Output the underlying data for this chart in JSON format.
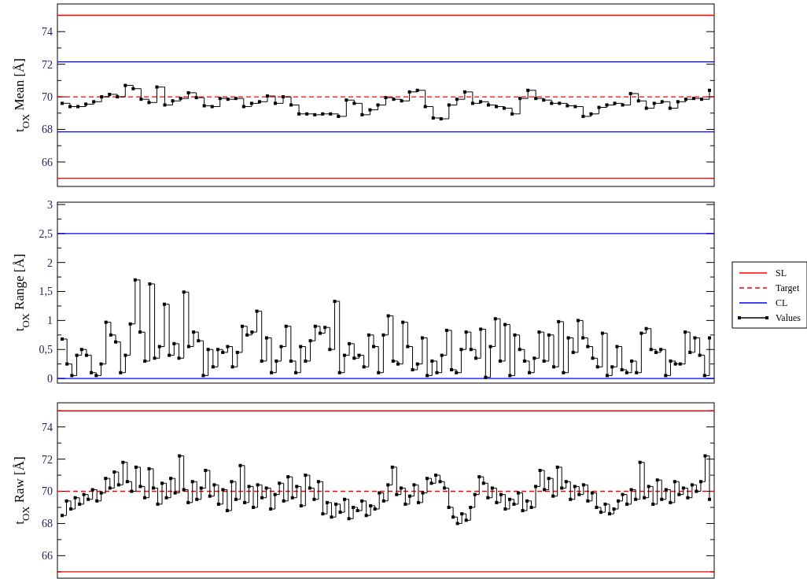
{
  "chart_data": [
    {
      "type": "step",
      "ylabel": "t$_{OX}$ Mean [Å]",
      "ylim": [
        64.5,
        75.7
      ],
      "yticks": [
        {
          "value": 65,
          "label": null
        },
        66,
        {
          "value": 67,
          "label": null
        },
        68,
        {
          "value": 69,
          "label": null
        },
        70,
        {
          "value": 71,
          "label": null
        },
        72,
        {
          "value": 73,
          "label": null
        },
        74,
        {
          "value": 75,
          "label": null
        }
      ],
      "tick_labels": "y",
      "grid": false,
      "legend": "right",
      "marker": "square",
      "categories": [
        null,
        null,
        null,
        null,
        null,
        null,
        null,
        null,
        null,
        null,
        null,
        null,
        null,
        null,
        null,
        null,
        null,
        null,
        null,
        null,
        null,
        null,
        null,
        null,
        null,
        null,
        null,
        null,
        null,
        null,
        null,
        null,
        null,
        null,
        null,
        null,
        null,
        null,
        null,
        null,
        null,
        null,
        null,
        null,
        null,
        null,
        null,
        null,
        null,
        null,
        null,
        null,
        null,
        null,
        null,
        null,
        null,
        null,
        null,
        null,
        null,
        null,
        null,
        null,
        null,
        null,
        null,
        null,
        null,
        null,
        null,
        null,
        null,
        null,
        null,
        null,
        null,
        null,
        null,
        null,
        null,
        null,
        null
      ],
      "series": [
        {
          "name": "Values",
          "color": "#000000",
          "values": [
            69.6,
            69.4,
            69.4,
            69.55,
            69.7,
            70.0,
            70.15,
            70.0,
            70.7,
            70.5,
            69.85,
            69.65,
            70.6,
            69.5,
            69.75,
            69.9,
            70.25,
            69.95,
            69.45,
            69.4,
            69.9,
            69.85,
            69.9,
            69.4,
            69.6,
            69.7,
            70.05,
            69.6,
            70.0,
            69.5,
            68.95,
            68.95,
            68.9,
            68.95,
            68.95,
            68.8,
            69.8,
            69.6,
            68.9,
            69.2,
            69.5,
            69.95,
            69.85,
            69.75,
            70.3,
            70.4,
            69.4,
            68.7,
            68.65,
            69.5,
            69.85,
            70.3,
            69.6,
            69.7,
            69.5,
            69.4,
            69.3,
            68.95,
            69.9,
            70.4,
            69.9,
            69.8,
            69.6,
            69.6,
            69.45,
            69.4,
            68.8,
            68.95,
            69.35,
            69.5,
            69.6,
            69.5,
            70.2,
            69.75,
            69.3,
            69.6,
            69.7,
            69.3,
            69.7,
            69.85,
            69.9,
            69.85,
            70.4
          ]
        }
      ],
      "ref_lines": [
        {
          "axis": "y",
          "value": 75,
          "label": "SL",
          "color": "#ff0000",
          "line_style": "solid"
        },
        {
          "axis": "y",
          "value": 65,
          "color": "#ff0000",
          "line_style": "solid"
        },
        {
          "axis": "y",
          "value": 70,
          "label": "Target",
          "color": "#ff0000",
          "line_style": "dashed"
        },
        {
          "axis": "y",
          "value": 72.15,
          "label": "CL",
          "color": "#0000ff",
          "line_style": "solid"
        },
        {
          "axis": "y",
          "value": 67.85,
          "color": "#0000ff",
          "line_style": "solid"
        }
      ]
    },
    {
      "type": "step",
      "ylabel": "t$_{OX}$ Range [Å]",
      "ylim": [
        -0.08,
        3.04
      ],
      "yticks": [
        0,
        {
          "value": 0.25,
          "label": null
        },
        {
          "value": 0.5,
          "label": "0,5"
        },
        {
          "value": 0.75,
          "label": null
        },
        1,
        {
          "value": 1.25,
          "label": null
        },
        {
          "value": 1.5,
          "label": "1,5"
        },
        {
          "value": 1.75,
          "label": null
        },
        2,
        {
          "value": 2.25,
          "label": null
        },
        {
          "value": 2.5,
          "label": "2,5"
        },
        {
          "value": 2.75,
          "label": null
        },
        3
      ],
      "tick_labels": "y",
      "grid": false,
      "marker": "square",
      "categories": [
        null,
        null,
        null,
        null,
        null,
        null,
        null,
        null,
        null,
        null,
        null,
        null,
        null,
        null,
        null,
        null,
        null,
        null,
        null,
        null,
        null,
        null,
        null,
        null,
        null,
        null,
        null,
        null,
        null,
        null,
        null,
        null,
        null,
        null,
        null,
        null,
        null,
        null,
        null,
        null,
        null,
        null,
        null,
        null,
        null,
        null,
        null,
        null,
        null,
        null,
        null,
        null,
        null,
        null,
        null,
        null,
        null,
        null,
        null,
        null,
        null,
        null,
        null,
        null,
        null,
        null,
        null,
        null,
        null,
        null,
        null,
        null,
        null,
        null,
        null,
        null,
        null,
        null,
        null,
        null,
        null,
        null,
        null,
        null,
        null,
        null,
        null,
        null,
        null,
        null,
        null,
        null,
        null,
        null,
        null,
        null,
        null,
        null,
        null,
        null,
        null,
        null,
        null,
        null,
        null,
        null,
        null,
        null,
        null,
        null,
        null,
        null,
        null,
        null,
        null,
        null,
        null,
        null,
        null,
        null,
        null,
        null,
        null,
        null,
        null,
        null,
        null,
        null,
        null,
        null,
        null,
        null,
        null,
        null
      ],
      "series": [
        {
          "color": "#000000",
          "values": [
            0.68,
            0.25,
            0.05,
            0.4,
            0.5,
            0.4,
            0.1,
            0.05,
            0.25,
            0.97,
            0.75,
            0.63,
            0.1,
            0.4,
            0.94,
            1.7,
            0.8,
            0.3,
            1.63,
            0.35,
            0.55,
            1.28,
            0.4,
            0.6,
            0.35,
            1.49,
            0.55,
            0.8,
            0.65,
            0.05,
            0.5,
            0.2,
            0.5,
            0.45,
            0.55,
            0.2,
            0.45,
            0.9,
            0.75,
            0.8,
            1.16,
            0.3,
            0.7,
            0.1,
            0.3,
            0.55,
            0.9,
            0.3,
            0.1,
            0.55,
            0.3,
            0.65,
            0.9,
            0.78,
            0.88,
            0.5,
            1.33,
            0.1,
            0.4,
            0.6,
            0.35,
            0.4,
            0.2,
            0.75,
            0.55,
            0.1,
            0.75,
            1.08,
            0.3,
            0.25,
            0.97,
            0.55,
            0.15,
            0.25,
            0.7,
            0.05,
            0.3,
            0.1,
            0.4,
            0.83,
            0.15,
            0.1,
            0.5,
            0.8,
            0.5,
            0.35,
            0.85,
            0.02,
            0.55,
            1.03,
            0.3,
            0.93,
            0.05,
            0.75,
            0.5,
            0.3,
            0.1,
            0.35,
            0.8,
            0.3,
            0.75,
            0.2,
            0.98,
            0.1,
            0.7,
            0.45,
            1.0,
            0.7,
            0.55,
            0.35,
            0.2,
            0.78,
            0.05,
            0.2,
            0.55,
            0.15,
            0.1,
            0.3,
            0.1,
            0.78,
            0.86,
            0.5,
            0.45,
            0.5,
            0.05,
            0.3,
            0.25,
            0.25,
            0.8,
            0.45,
            0.7,
            0.4,
            0.05,
            0.7
          ]
        }
      ],
      "ref_lines": [
        {
          "axis": "y",
          "value": 2.5,
          "color": "#0000ff",
          "line_style": "solid"
        },
        {
          "axis": "y",
          "value": 0,
          "color": "#0000ff",
          "line_style": "solid"
        }
      ]
    },
    {
      "type": "step",
      "ylabel": "t$_{OX}$ Raw [Å]",
      "ylim": [
        64.6,
        75.5
      ],
      "yticks": [
        {
          "value": 65,
          "label": null
        },
        66,
        {
          "value": 67,
          "label": null
        },
        68,
        {
          "value": 69,
          "label": null
        },
        70,
        {
          "value": 71,
          "label": null
        },
        72,
        {
          "value": 73,
          "label": null
        },
        74,
        {
          "value": 75,
          "label": null
        }
      ],
      "tick_labels": "y",
      "grid": false,
      "marker": "square",
      "categories": [
        null,
        null,
        null,
        null,
        null,
        null,
        null,
        null,
        null,
        null,
        null,
        null,
        null,
        null,
        null,
        null,
        null,
        null,
        null,
        null,
        null,
        null,
        null,
        null,
        null,
        null,
        null,
        null,
        null,
        null,
        null,
        null,
        null,
        null,
        null,
        null,
        null,
        null,
        null,
        null,
        null,
        null,
        null,
        null,
        null,
        null,
        null,
        null,
        null,
        null,
        null,
        null,
        null,
        null,
        null,
        null,
        null,
        null,
        null,
        null,
        null,
        null,
        null,
        null,
        null,
        null,
        null,
        null,
        null,
        null,
        null,
        null,
        null,
        null,
        null,
        null,
        null,
        null,
        null,
        null,
        null,
        null,
        null,
        null,
        null,
        null,
        null,
        null,
        null,
        null,
        null,
        null,
        null,
        null,
        null,
        null,
        null,
        null,
        null,
        null,
        null,
        null,
        null,
        null,
        null,
        null,
        null,
        null,
        null,
        null,
        null,
        null,
        null,
        null,
        null,
        null,
        null,
        null,
        null,
        null,
        null,
        null,
        null,
        null,
        null,
        null,
        null,
        null,
        null,
        null,
        null,
        null,
        null,
        null,
        null,
        null,
        null,
        null,
        null,
        null,
        null,
        null,
        null,
        null,
        null,
        null,
        null,
        null,
        null,
        null
      ],
      "series": [
        {
          "color": "#000000",
          "values": [
            68.5,
            69.4,
            68.9,
            69.6,
            69.2,
            69.8,
            69.5,
            70.1,
            69.4,
            69.9,
            70.8,
            70.2,
            71.2,
            70.4,
            71.8,
            70.6,
            70.0,
            71.5,
            70.3,
            69.6,
            71.4,
            70.2,
            69.2,
            70.5,
            69.6,
            70.8,
            69.9,
            72.2,
            70.1,
            69.3,
            70.6,
            69.5,
            70.2,
            71.3,
            69.7,
            70.4,
            69.2,
            70.1,
            68.8,
            70.6,
            69.5,
            71.6,
            69.3,
            70.3,
            69.0,
            70.4,
            69.6,
            70.2,
            68.9,
            69.8,
            70.5,
            69.4,
            70.9,
            69.6,
            70.3,
            69.1,
            71.0,
            70.2,
            69.5,
            70.6,
            68.6,
            69.3,
            68.4,
            69.2,
            68.7,
            69.5,
            68.3,
            69.0,
            68.8,
            69.4,
            68.5,
            69.1,
            68.9,
            69.9,
            69.4,
            70.4,
            71.5,
            69.8,
            70.2,
            69.2,
            69.7,
            70.4,
            69.3,
            69.9,
            70.8,
            70.5,
            71.0,
            70.6,
            70.2,
            69.0,
            68.4,
            68.0,
            68.6,
            68.2,
            69.0,
            69.8,
            70.9,
            70.5,
            69.6,
            70.2,
            69.3,
            69.8,
            68.9,
            69.5,
            69.2,
            69.9,
            68.8,
            69.4,
            69.0,
            70.3,
            71.3,
            70.1,
            70.8,
            69.7,
            71.5,
            70.2,
            70.6,
            69.5,
            70.3,
            69.8,
            70.4,
            69.4,
            69.9,
            69.0,
            68.7,
            69.2,
            68.6,
            68.9,
            69.4,
            69.8,
            69.2,
            70.1,
            69.5,
            71.8,
            69.6,
            70.3,
            69.2,
            70.7,
            69.5,
            70.1,
            69.3,
            70.6,
            69.8,
            70.2,
            69.6,
            70.4,
            70.0,
            70.6,
            72.2,
            69.5
          ]
        }
      ],
      "ref_lines": [
        {
          "axis": "y",
          "value": 75,
          "color": "#ff0000",
          "line_style": "solid"
        },
        {
          "axis": "y",
          "value": 65,
          "color": "#ff0000",
          "line_style": "solid"
        },
        {
          "axis": "y",
          "value": 70,
          "color": "#ff0000",
          "line_style": "dashed"
        }
      ]
    }
  ]
}
